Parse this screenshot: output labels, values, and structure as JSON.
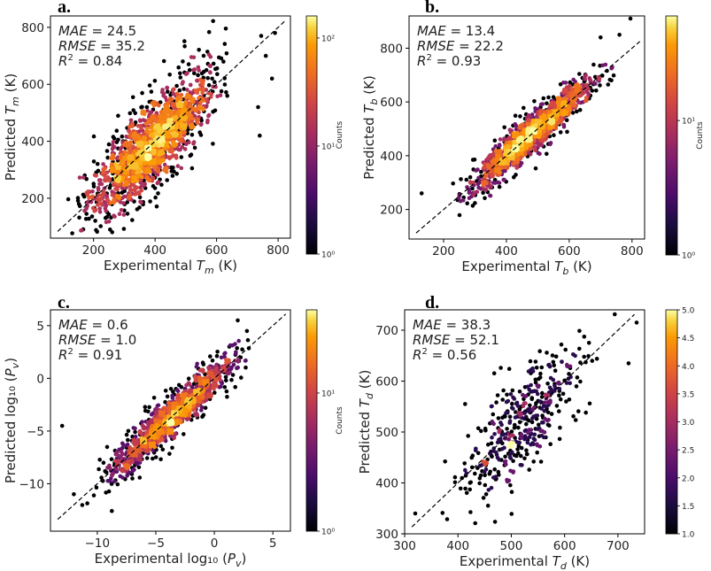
{
  "chart_data": [
    {
      "panel": "a.",
      "type": "scatter",
      "xlabel": "Experimental T_m (K)",
      "ylabel": "Predicted T_m (K)",
      "xlim": [
        60,
        840
      ],
      "ylim": [
        60,
        840
      ],
      "xticks": [
        "200",
        "400",
        "600",
        "800"
      ],
      "xtick_values": [
        200,
        400,
        600,
        800
      ],
      "yticks": [
        "200",
        "400",
        "600",
        "800"
      ],
      "ytick_values": [
        200,
        400,
        600,
        800
      ],
      "stats": [
        {
          "label": "MAE",
          "value": " = 24.5"
        },
        {
          "label": "RMSE",
          "value": " = 35.2"
        },
        {
          "label": "R",
          "sup": "2",
          "value": " = 0.84"
        }
      ],
      "colorbar": {
        "label": "Counts",
        "scale": "log",
        "ticks": [
          "10⁰",
          "10¹",
          "10²"
        ],
        "tick_values": [
          1,
          10,
          100
        ],
        "range": [
          1,
          160
        ]
      },
      "diagonal": true,
      "cloud": {
        "xmin": 80,
        "xmax": 700,
        "noise": 80,
        "points": 1700,
        "density_peak": 160,
        "seed": 11
      },
      "outliers": [
        [
          745,
          770
        ],
        [
          790,
          780
        ],
        [
          780,
          620
        ],
        [
          735,
          520
        ],
        [
          740,
          420
        ],
        [
          760,
          700
        ]
      ]
    },
    {
      "panel": "b.",
      "type": "scatter",
      "xlabel": "Experimental T_b (K)",
      "ylabel": "Predicted T_b (K)",
      "xlim": [
        90,
        840
      ],
      "ylim": [
        90,
        920
      ],
      "xticks": [
        "200",
        "400",
        "600",
        "800"
      ],
      "xtick_values": [
        200,
        400,
        600,
        800
      ],
      "yticks": [
        "200",
        "400",
        "600",
        "800"
      ],
      "ytick_values": [
        200,
        400,
        600,
        800
      ],
      "stats": [
        {
          "label": "MAE",
          "value": " = 13.4"
        },
        {
          "label": "RMSE",
          "value": " = 22.2"
        },
        {
          "label": "R",
          "sup": "2",
          "value": " = 0.93"
        }
      ],
      "colorbar": {
        "label": "Counts",
        "scale": "log",
        "ticks": [
          "10⁰",
          "10¹"
        ],
        "tick_values": [
          1,
          10
        ],
        "range": [
          1,
          60
        ]
      },
      "diagonal": true,
      "cloud": {
        "xmin": 170,
        "xmax": 800,
        "noise": 40,
        "points": 1400,
        "density_peak": 60,
        "seed": 23
      },
      "outliers": [
        [
          795,
          910
        ],
        [
          760,
          850
        ],
        [
          130,
          260
        ],
        [
          700,
          840
        ]
      ]
    },
    {
      "panel": "c.",
      "type": "scatter",
      "xlabel": "Experimental log₁₀ (P_v)",
      "ylabel": "Predicted log₁₀ (P_v)",
      "xlim": [
        -14,
        6.5
      ],
      "ylim": [
        -14.5,
        6.5
      ],
      "xticks": [
        "−10",
        "−5",
        "0",
        "5"
      ],
      "xtick_values": [
        -10,
        -5,
        0,
        5
      ],
      "yticks": [
        "−10",
        "−5",
        "0",
        "5"
      ],
      "ytick_values": [
        -10,
        -5,
        0,
        5
      ],
      "stats": [
        {
          "label": "MAE",
          "value": " = 0.6"
        },
        {
          "label": "RMSE",
          "value": " = 1.0"
        },
        {
          "label": "R",
          "sup": "2",
          "value": " = 0.91"
        }
      ],
      "colorbar": {
        "label": "Counts",
        "scale": "log",
        "ticks": [
          "10⁰",
          "10¹"
        ],
        "tick_values": [
          1,
          10
        ],
        "range": [
          1,
          40
        ]
      },
      "diagonal": true,
      "cloud": {
        "xmin": -12,
        "xmax": 5,
        "noise": 1.1,
        "points": 1300,
        "density_peak": 40,
        "seed": 37
      },
      "outliers": [
        [
          -13,
          -4.5
        ],
        [
          -12,
          -11
        ],
        [
          -7,
          -9.5
        ],
        [
          2,
          5.5
        ]
      ]
    },
    {
      "panel": "d.",
      "type": "scatter",
      "xlabel": "Experimental T_d (K)",
      "ylabel": "Predicted T_d (K)",
      "xlim": [
        300,
        750
      ],
      "ylim": [
        300,
        740
      ],
      "xticks": [
        "300",
        "400",
        "500",
        "600",
        "700"
      ],
      "xtick_values": [
        300,
        400,
        500,
        600,
        700
      ],
      "yticks": [
        "300",
        "400",
        "500",
        "600",
        "700"
      ],
      "ytick_values": [
        300,
        400,
        500,
        600,
        700
      ],
      "stats": [
        {
          "label": "MAE",
          "value": " = 38.3"
        },
        {
          "label": "RMSE",
          "value": " = 52.1"
        },
        {
          "label": "R",
          "sup": "2",
          "value": " = 0.56"
        }
      ],
      "colorbar": {
        "label": "",
        "scale": "linear",
        "ticks": [
          "1.0",
          "1.5",
          "2.0",
          "2.5",
          "3.0",
          "3.5",
          "4.0",
          "4.5",
          "5.0"
        ],
        "tick_values": [
          1.0,
          1.5,
          2.0,
          2.5,
          3.0,
          3.5,
          4.0,
          4.5,
          5.0
        ],
        "range": [
          1,
          5
        ]
      },
      "diagonal": true,
      "cloud": {
        "xmin": 330,
        "xmax": 710,
        "noise": 55,
        "points": 420,
        "density_peak": 5,
        "seed": 53
      },
      "outliers": [
        [
          735,
          715
        ],
        [
          720,
          635
        ],
        [
          320,
          340
        ]
      ]
    }
  ]
}
